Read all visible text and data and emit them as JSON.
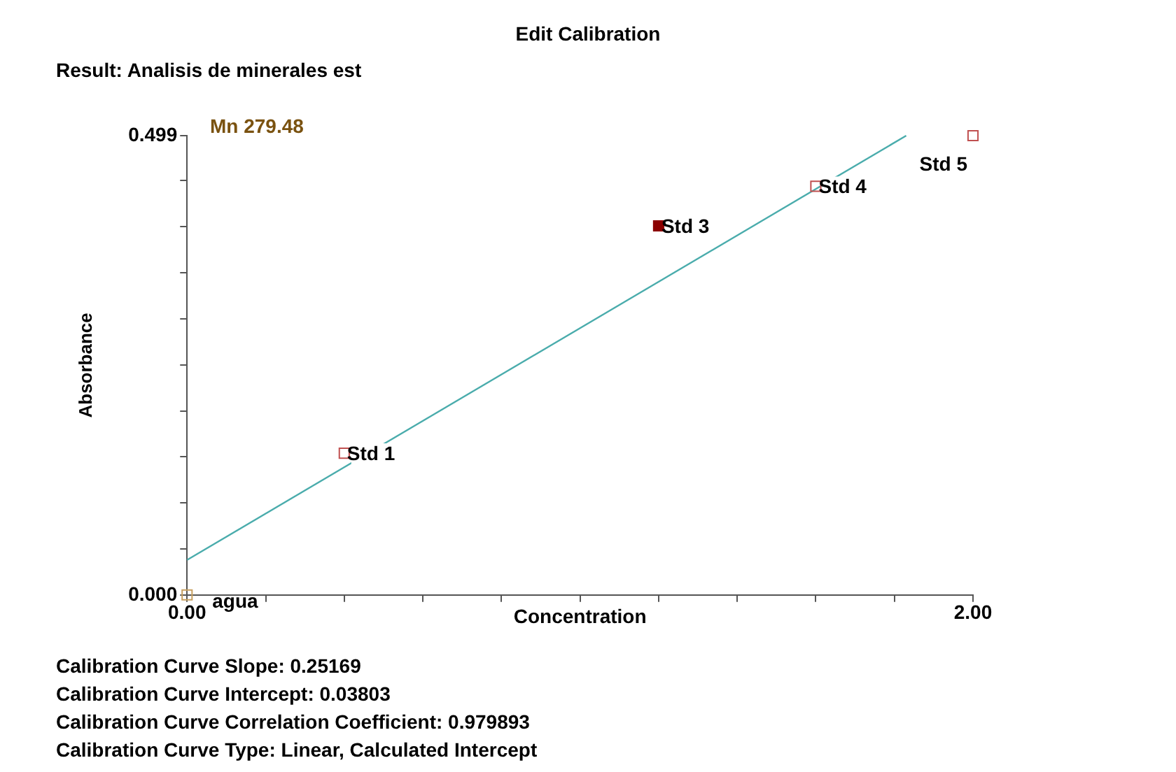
{
  "chart_data": {
    "type": "scatter",
    "title": "Edit Calibration",
    "subtitle": "Result: Analisis de minerales est",
    "xlabel": "Concentration",
    "ylabel": "Absorbance",
    "series": [
      {
        "type": "line",
        "color": "#4aacac",
        "x": [
          0,
          1.83
        ],
        "values": [
          0.038,
          0.499
        ],
        "marker": "none"
      },
      {
        "type": "scatter",
        "colors": [
          "#c8a060",
          "#c05050",
          "#8b0000",
          "#c05050",
          "#c05050"
        ],
        "x": [
          0,
          0.4,
          1.2,
          1.6,
          2.0
        ],
        "values": [
          0,
          0.154,
          0.401,
          0.444,
          0.499
        ],
        "marker": "square"
      }
    ],
    "xlim": [
      0,
      2.0
    ],
    "ylim": [
      0,
      0.499
    ],
    "xticks": [
      {
        "value": 0,
        "label": "0.00"
      },
      {
        "value": 0.2,
        "label": null
      },
      {
        "value": 0.4,
        "label": null
      },
      {
        "value": 0.6,
        "label": null
      },
      {
        "value": 0.8,
        "label": null
      },
      {
        "value": 1.0,
        "label": null
      },
      {
        "value": 1.2,
        "label": null
      },
      {
        "value": 1.4,
        "label": null
      },
      {
        "value": 1.6,
        "label": null
      },
      {
        "value": 1.8,
        "label": null
      },
      {
        "value": 2.0,
        "label": "2.00"
      }
    ],
    "yticks": [
      {
        "value": 0,
        "label": "0.000"
      },
      {
        "value": 0.05,
        "label": null
      },
      {
        "value": 0.1,
        "label": null
      },
      {
        "value": 0.15,
        "label": null
      },
      {
        "value": 0.2,
        "label": null
      },
      {
        "value": 0.25,
        "label": null
      },
      {
        "value": 0.3,
        "label": null
      },
      {
        "value": 0.35,
        "label": null
      },
      {
        "value": 0.4,
        "label": null
      },
      {
        "value": 0.45,
        "label": null
      },
      {
        "value": 0.499,
        "label": "0.499"
      }
    ],
    "grid": false,
    "legend": false,
    "annotations": [
      "Mn 279.48",
      {
        "text": "agua",
        "x": 0,
        "y": 0
      },
      {
        "text": "Std 1",
        "x": 0.4,
        "y": 0.154
      },
      {
        "text": "Std 3",
        "x": 1.2,
        "y": 0.401
      },
      {
        "text": "Std 4",
        "x": 1.6,
        "y": 0.444
      },
      {
        "text": "Std 5",
        "x": 2.0,
        "y": 0.499
      },
      "Calibration Curve Slope:  0.25169",
      "Calibration Curve Intercept:  0.03803",
      "Calibration Curve Correlation Coefficient:  0.979893",
      "Calibration Curve Type:  Linear, Calculated Intercept"
    ]
  }
}
